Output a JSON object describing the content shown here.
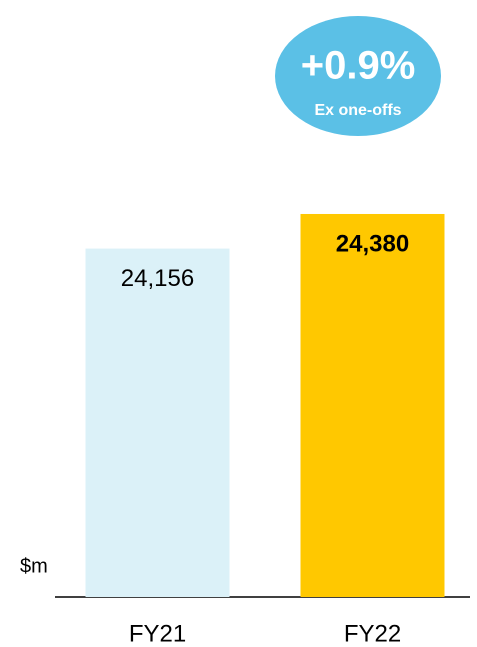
{
  "chart_data": {
    "type": "bar",
    "categories": [
      "FY21",
      "FY22"
    ],
    "values": [
      24156,
      24380
    ],
    "value_labels": [
      "24,156",
      "24,380"
    ],
    "colors": [
      "#dbf1f8",
      "#ffc800"
    ],
    "ylim": [
      21900,
      24600
    ],
    "y_unit_label": "$m",
    "badge": {
      "value": "+0.9%",
      "label": "Ex one-offs",
      "color": "#5bc0e6"
    }
  }
}
